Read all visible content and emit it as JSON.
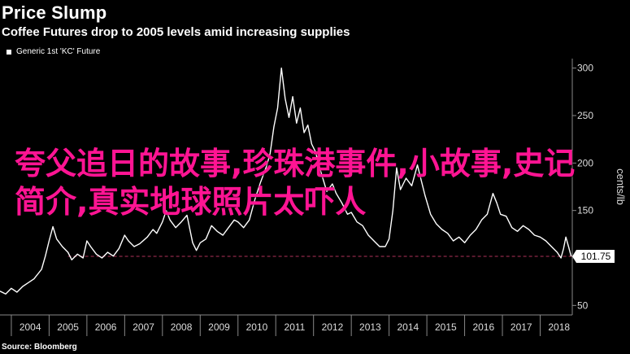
{
  "header": {
    "title": "Price Slump",
    "subtitle": "Coffee Futures drop to 2005 levels amid increasing supplies"
  },
  "overlay_text": "夸父追日的故事,珍珠港事件,小故事,史记简介,真实地球照片太吓人",
  "footer": {
    "source": "Source: Bloomberg"
  },
  "colors": {
    "background": "#000000",
    "line": "#ffffff",
    "reference": "#b0325a",
    "overlay": "#ff1493",
    "axis": "#888888"
  },
  "chart_data": {
    "type": "line",
    "title": "Price Slump",
    "subtitle": "Coffee Futures drop to 2005 levels amid increasing supplies",
    "ylabel": "cents/lb",
    "xlabel": "",
    "xlim": [
      2003.7,
      2018.85
    ],
    "ylim": [
      40,
      310
    ],
    "x_ticks": [
      "2004",
      "2005",
      "2006",
      "2007",
      "2008",
      "2009",
      "2010",
      "2011",
      "2012",
      "2013",
      "2014",
      "2015",
      "2016",
      "2017",
      "2018"
    ],
    "y_ticks": [
      50,
      100,
      150,
      200,
      250,
      300
    ],
    "last_value_label": "101.75",
    "reference_line": 101.75,
    "grid": false,
    "legend_position": "top-left",
    "series": [
      {
        "name": "Generic 1st 'KC' Future",
        "points": [
          [
            2003.7,
            65
          ],
          [
            2003.85,
            62
          ],
          [
            2004.0,
            68
          ],
          [
            2004.15,
            64
          ],
          [
            2004.3,
            70
          ],
          [
            2004.45,
            74
          ],
          [
            2004.6,
            78
          ],
          [
            2004.8,
            88
          ],
          [
            2004.9,
            102
          ],
          [
            2005.0,
            118
          ],
          [
            2005.1,
            133
          ],
          [
            2005.2,
            120
          ],
          [
            2005.35,
            112
          ],
          [
            2005.5,
            106
          ],
          [
            2005.6,
            98
          ],
          [
            2005.75,
            104
          ],
          [
            2005.9,
            100
          ],
          [
            2006.0,
            118
          ],
          [
            2006.1,
            112
          ],
          [
            2006.25,
            104
          ],
          [
            2006.4,
            100
          ],
          [
            2006.55,
            106
          ],
          [
            2006.7,
            102
          ],
          [
            2006.85,
            110
          ],
          [
            2007.0,
            124
          ],
          [
            2007.1,
            118
          ],
          [
            2007.25,
            112
          ],
          [
            2007.4,
            115
          ],
          [
            2007.6,
            122
          ],
          [
            2007.75,
            130
          ],
          [
            2007.85,
            126
          ],
          [
            2008.0,
            138
          ],
          [
            2008.1,
            150
          ],
          [
            2008.2,
            140
          ],
          [
            2008.35,
            132
          ],
          [
            2008.5,
            138
          ],
          [
            2008.65,
            145
          ],
          [
            2008.8,
            116
          ],
          [
            2008.9,
            108
          ],
          [
            2009.0,
            116
          ],
          [
            2009.15,
            120
          ],
          [
            2009.3,
            134
          ],
          [
            2009.45,
            128
          ],
          [
            2009.6,
            124
          ],
          [
            2009.75,
            132
          ],
          [
            2009.9,
            140
          ],
          [
            2010.0,
            138
          ],
          [
            2010.15,
            132
          ],
          [
            2010.3,
            140
          ],
          [
            2010.45,
            162
          ],
          [
            2010.6,
            180
          ],
          [
            2010.75,
            196
          ],
          [
            2010.85,
            210
          ],
          [
            2010.95,
            238
          ],
          [
            2011.05,
            258
          ],
          [
            2011.15,
            300
          ],
          [
            2011.25,
            268
          ],
          [
            2011.35,
            248
          ],
          [
            2011.45,
            270
          ],
          [
            2011.55,
            242
          ],
          [
            2011.65,
            258
          ],
          [
            2011.75,
            232
          ],
          [
            2011.85,
            240
          ],
          [
            2011.95,
            220
          ],
          [
            2012.05,
            212
          ],
          [
            2012.2,
            190
          ],
          [
            2012.35,
            170
          ],
          [
            2012.5,
            178
          ],
          [
            2012.6,
            168
          ],
          [
            2012.75,
            158
          ],
          [
            2012.9,
            146
          ],
          [
            2013.0,
            148
          ],
          [
            2013.15,
            138
          ],
          [
            2013.3,
            134
          ],
          [
            2013.45,
            124
          ],
          [
            2013.6,
            118
          ],
          [
            2013.75,
            112
          ],
          [
            2013.9,
            112
          ],
          [
            2014.0,
            120
          ],
          [
            2014.1,
            150
          ],
          [
            2014.2,
            195
          ],
          [
            2014.3,
            172
          ],
          [
            2014.45,
            184
          ],
          [
            2014.6,
            176
          ],
          [
            2014.75,
            198
          ],
          [
            2014.85,
            182
          ],
          [
            2014.95,
            166
          ],
          [
            2015.1,
            146
          ],
          [
            2015.25,
            136
          ],
          [
            2015.4,
            130
          ],
          [
            2015.55,
            126
          ],
          [
            2015.7,
            118
          ],
          [
            2015.85,
            122
          ],
          [
            2016.0,
            116
          ],
          [
            2016.15,
            124
          ],
          [
            2016.3,
            130
          ],
          [
            2016.45,
            140
          ],
          [
            2016.6,
            146
          ],
          [
            2016.75,
            168
          ],
          [
            2016.85,
            158
          ],
          [
            2016.95,
            146
          ],
          [
            2017.1,
            144
          ],
          [
            2017.25,
            132
          ],
          [
            2017.4,
            128
          ],
          [
            2017.55,
            134
          ],
          [
            2017.7,
            130
          ],
          [
            2017.85,
            124
          ],
          [
            2018.0,
            122
          ],
          [
            2018.15,
            118
          ],
          [
            2018.3,
            112
          ],
          [
            2018.45,
            106
          ],
          [
            2018.55,
            100
          ],
          [
            2018.62,
            110
          ],
          [
            2018.68,
            122
          ],
          [
            2018.75,
            112
          ],
          [
            2018.82,
            101.75
          ]
        ]
      }
    ]
  }
}
